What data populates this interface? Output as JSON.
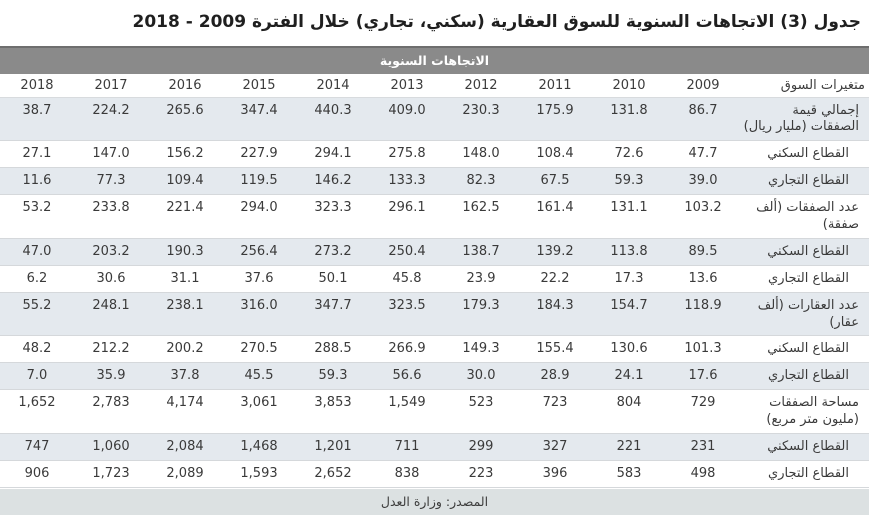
{
  "title": "جدول (3) الاتجاهات السنوية للسوق العقارية (سكني، تجاري) خلال الفترة 2009 - 2018",
  "table": {
    "band_label": "الاتجاهات السنوية",
    "variables_header": "متغيرات السوق",
    "years": [
      "2009",
      "2010",
      "2011",
      "2012",
      "2013",
      "2014",
      "2015",
      "2016",
      "2017",
      "2018"
    ],
    "rows": [
      {
        "label": "إجمالي قيمة الصفقات (مليار ريال)",
        "indent": false,
        "values": [
          "86.7",
          "131.8",
          "175.9",
          "230.3",
          "409.0",
          "440.3",
          "347.4",
          "265.6",
          "224.2",
          "38.7"
        ]
      },
      {
        "label": "القطاع السكني",
        "indent": true,
        "values": [
          "47.7",
          "72.6",
          "108.4",
          "148.0",
          "275.8",
          "294.1",
          "227.9",
          "156.2",
          "147.0",
          "27.1"
        ]
      },
      {
        "label": "القطاع التجاري",
        "indent": true,
        "values": [
          "39.0",
          "59.3",
          "67.5",
          "82.3",
          "133.3",
          "146.2",
          "119.5",
          "109.4",
          "77.3",
          "11.6"
        ]
      },
      {
        "label": "عدد الصفقات (ألف صفقة)",
        "indent": false,
        "values": [
          "103.2",
          "131.1",
          "161.4",
          "162.5",
          "296.1",
          "323.3",
          "294.0",
          "221.4",
          "233.8",
          "53.2"
        ]
      },
      {
        "label": "القطاع السكني",
        "indent": true,
        "values": [
          "89.5",
          "113.8",
          "139.2",
          "138.7",
          "250.4",
          "273.2",
          "256.4",
          "190.3",
          "203.2",
          "47.0"
        ]
      },
      {
        "label": "القطاع التجاري",
        "indent": true,
        "values": [
          "13.6",
          "17.3",
          "22.2",
          "23.9",
          "45.8",
          "50.1",
          "37.6",
          "31.1",
          "30.6",
          "6.2"
        ]
      },
      {
        "label": "عدد العقارات (ألف عقار)",
        "indent": false,
        "values": [
          "118.9",
          "154.7",
          "184.3",
          "179.3",
          "323.5",
          "347.7",
          "316.0",
          "238.1",
          "248.1",
          "55.2"
        ]
      },
      {
        "label": "القطاع السكني",
        "indent": true,
        "values": [
          "101.3",
          "130.6",
          "155.4",
          "149.3",
          "266.9",
          "288.5",
          "270.5",
          "200.2",
          "212.2",
          "48.2"
        ]
      },
      {
        "label": "القطاع التجاري",
        "indent": true,
        "values": [
          "17.6",
          "24.1",
          "28.9",
          "30.0",
          "56.6",
          "59.3",
          "45.5",
          "37.8",
          "35.9",
          "7.0"
        ]
      },
      {
        "label": "مساحة الصفقات (مليون متر مربع)",
        "indent": false,
        "values": [
          "729",
          "804",
          "723",
          "523",
          "1,549",
          "3,853",
          "3,061",
          "4,174",
          "2,783",
          "1,652"
        ]
      },
      {
        "label": "القطاع السكني",
        "indent": true,
        "values": [
          "231",
          "221",
          "327",
          "299",
          "711",
          "1,201",
          "1,468",
          "2,084",
          "1,060",
          "747"
        ]
      },
      {
        "label": "القطاع التجاري",
        "indent": true,
        "values": [
          "498",
          "583",
          "396",
          "223",
          "838",
          "2,652",
          "1,593",
          "2,089",
          "1,723",
          "906"
        ]
      }
    ],
    "source_label": "المصدر: وزارة العدل"
  },
  "colors": {
    "band_bg": "#8a8a8a",
    "band_border_top": "#6e6e6e",
    "band_text": "#ffffff",
    "stripe_bg": "#e4e9ee",
    "footer_bg": "#dce1e2",
    "row_border": "#d5d8db",
    "text": "#3a3a3a"
  }
}
